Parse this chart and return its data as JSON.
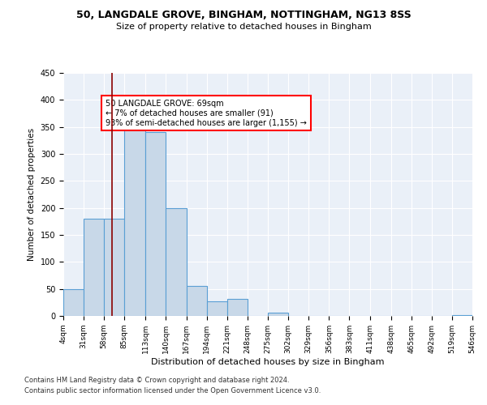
{
  "title1": "50, LANGDALE GROVE, BINGHAM, NOTTINGHAM, NG13 8SS",
  "title2": "Size of property relative to detached houses in Bingham",
  "xlabel": "Distribution of detached houses by size in Bingham",
  "ylabel": "Number of detached properties",
  "bins": [
    4,
    31,
    58,
    85,
    113,
    140,
    167,
    194,
    221,
    248,
    275,
    302,
    329,
    356,
    383,
    411,
    438,
    465,
    492,
    519,
    546
  ],
  "counts": [
    50,
    180,
    180,
    365,
    340,
    200,
    55,
    27,
    32,
    0,
    6,
    0,
    0,
    0,
    0,
    0,
    0,
    0,
    0,
    1
  ],
  "bar_color": "#c8d8e8",
  "bar_edge_color": "#5a9fd4",
  "red_line_x": 69,
  "annotation_text": "50 LANGDALE GROVE: 69sqm\n← 7% of detached houses are smaller (91)\n93% of semi-detached houses are larger (1,155) →",
  "annotation_box_color": "white",
  "annotation_box_edge": "red",
  "ylim": [
    0,
    450
  ],
  "yticks": [
    0,
    50,
    100,
    150,
    200,
    250,
    300,
    350,
    400,
    450
  ],
  "background_color": "#eaf0f8",
  "grid_color": "white",
  "footer1": "Contains HM Land Registry data © Crown copyright and database right 2024.",
  "footer2": "Contains public sector information licensed under the Open Government Licence v3.0."
}
